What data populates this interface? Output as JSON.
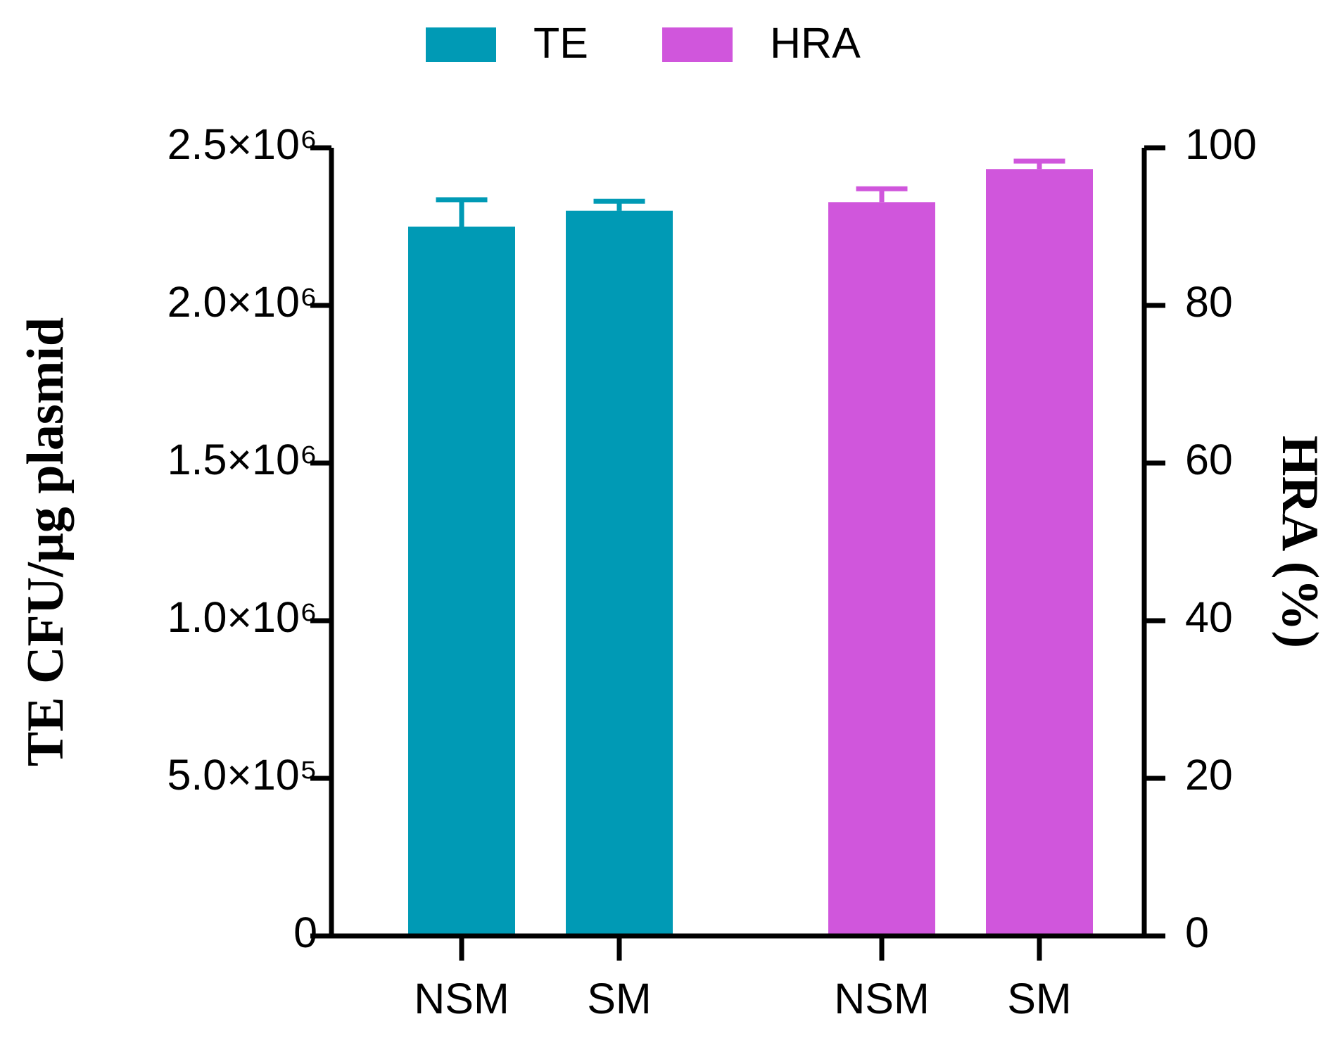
{
  "chart_data": {
    "type": "bar",
    "categories": [
      "NSM",
      "SM",
      "NSM",
      "SM"
    ],
    "series": [
      {
        "name": "TE",
        "color": "#009ab5",
        "axis": "y",
        "values": [
          2250000,
          2300000,
          null,
          null
        ],
        "errors": [
          85000,
          30000,
          null,
          null
        ]
      },
      {
        "name": "HRA",
        "color": "#d056dc",
        "axis": "y2",
        "values": [
          null,
          null,
          93.1,
          97.3
        ],
        "errors": [
          null,
          null,
          1.7,
          1.0
        ]
      }
    ],
    "ylabel": "TE CFU/μg plasmid",
    "y2label": "HRA (%)",
    "ylim": [
      0,
      2500000
    ],
    "yticks": [
      0,
      {
        "value": 500000,
        "label": "5.0×10⁵"
      },
      {
        "value": 1000000,
        "label": "1.0×10⁶"
      },
      {
        "value": 1500000,
        "label": "1.5×10⁶"
      },
      {
        "value": 2000000,
        "label": "2.0×10⁶"
      },
      {
        "value": 2500000,
        "label": "2.5×10⁶"
      }
    ],
    "y2lim": [
      0,
      100
    ],
    "y2ticks": [
      0,
      20,
      40,
      60,
      80,
      100
    ],
    "legend": "top"
  }
}
